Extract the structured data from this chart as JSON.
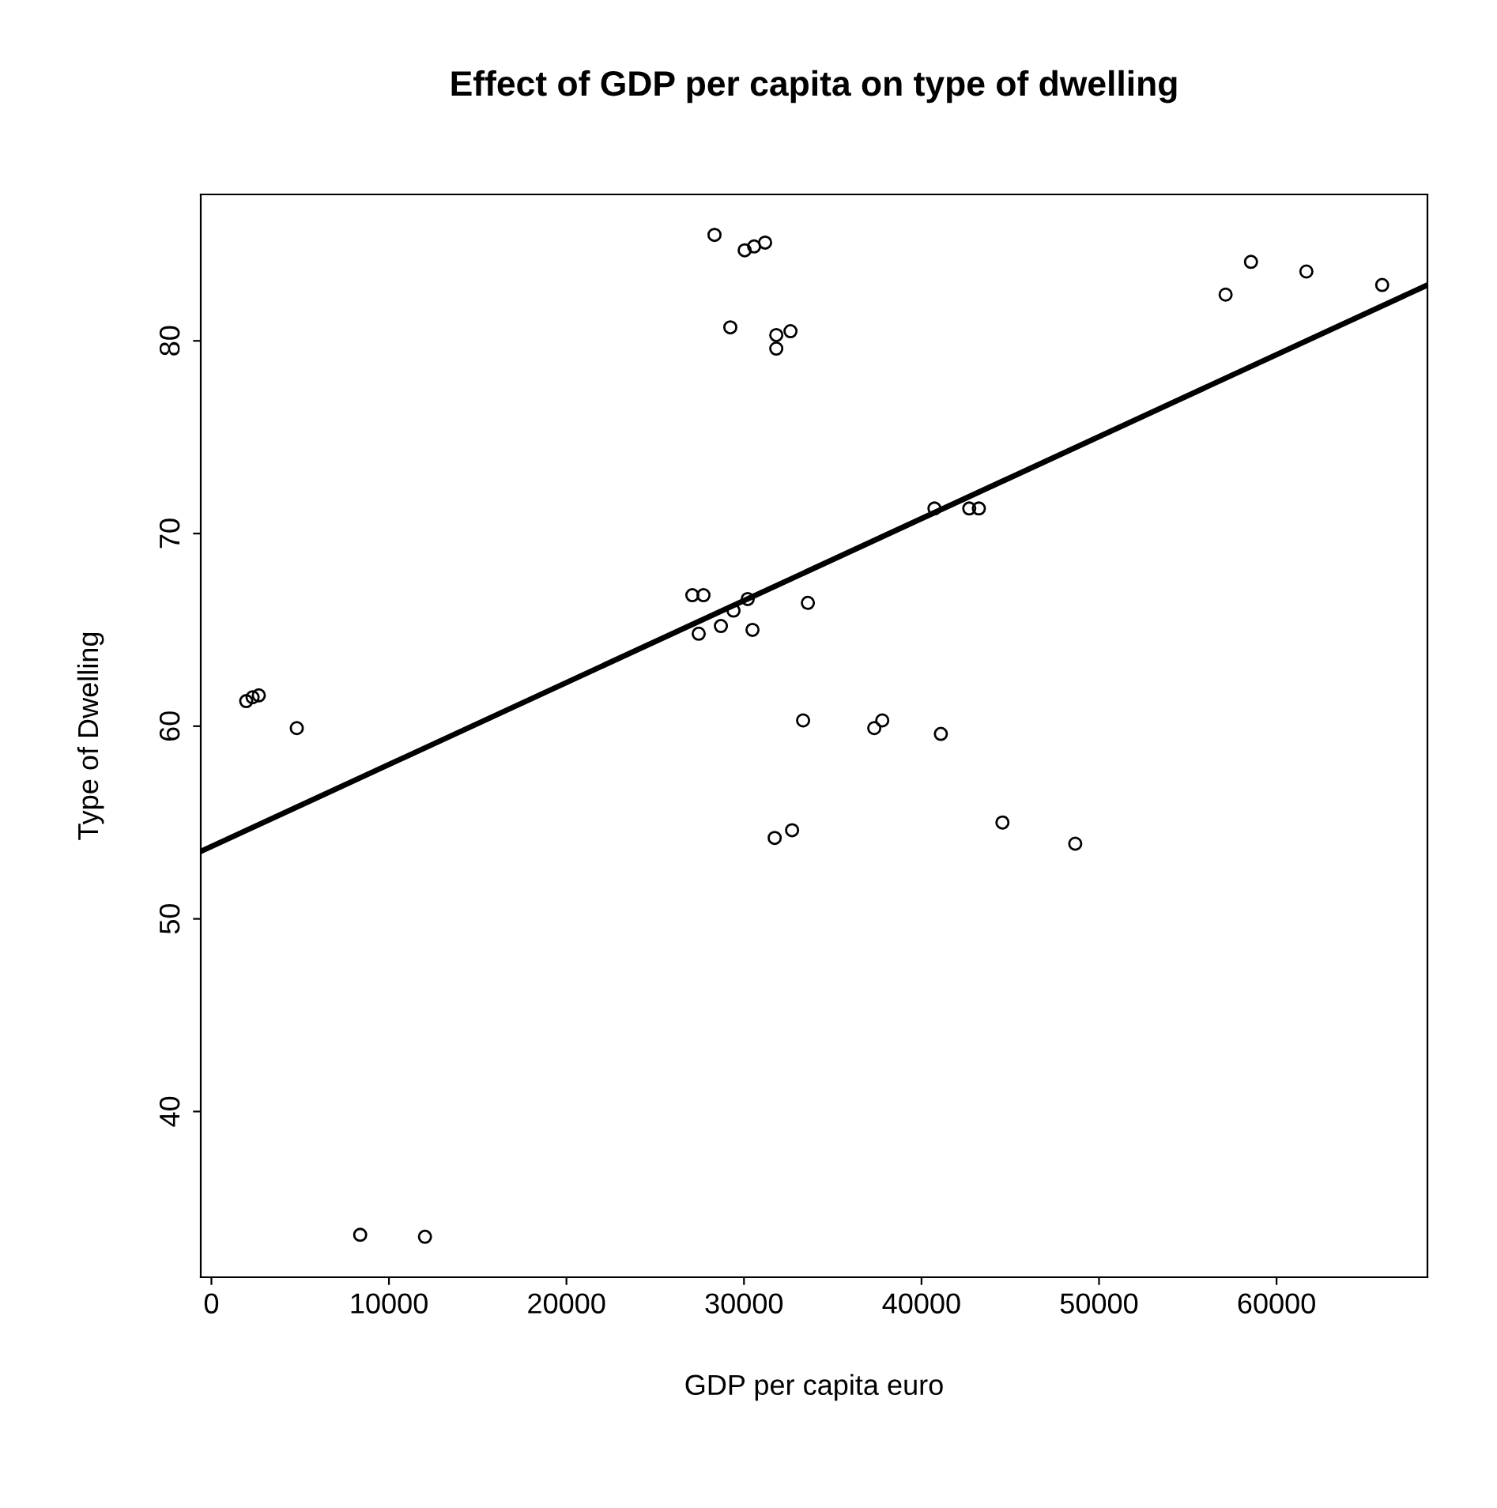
{
  "chart_data": {
    "type": "scatter",
    "title": "Effect of GDP per capita on type of dwelling",
    "xlabel": "GDP per capita euro",
    "ylabel": "Type of Dwelling",
    "xlim": [
      -600,
      68500
    ],
    "ylim": [
      31.4,
      87.6
    ],
    "xticks": [
      0,
      10000,
      20000,
      30000,
      40000,
      50000,
      60000
    ],
    "yticks": [
      40,
      50,
      60,
      70,
      80
    ],
    "grid": false,
    "legend": false,
    "marker": "circle",
    "series": [
      {
        "color": "#000000",
        "x": [
          1960,
          2320,
          2670,
          4810,
          8380,
          12030,
          28340,
          29230,
          30040,
          30570,
          31190,
          31820,
          31820,
          32620,
          27090,
          27720,
          27450,
          28700,
          29410,
          30210,
          30480,
          33600,
          33330,
          31730,
          32710,
          37340,
          37790,
          41090,
          40730,
          42690,
          43230,
          44560,
          48660,
          57130,
          58560,
          61680,
          65950
        ],
        "values": [
          61.3,
          61.5,
          61.6,
          59.9,
          33.6,
          33.5,
          85.5,
          80.7,
          84.7,
          84.9,
          85.1,
          80.3,
          79.6,
          80.5,
          66.8,
          66.8,
          64.8,
          65.2,
          66.0,
          66.6,
          65.0,
          66.4,
          60.3,
          54.2,
          54.6,
          59.9,
          60.3,
          59.6,
          71.3,
          71.3,
          71.3,
          55.0,
          53.9,
          82.4,
          84.1,
          83.6,
          82.9
        ]
      },
      {
        "type": "line",
        "color": "#000000",
        "marker": "none",
        "x": [
          -600,
          68500
        ],
        "values": [
          53.5,
          82.9
        ]
      }
    ]
  }
}
